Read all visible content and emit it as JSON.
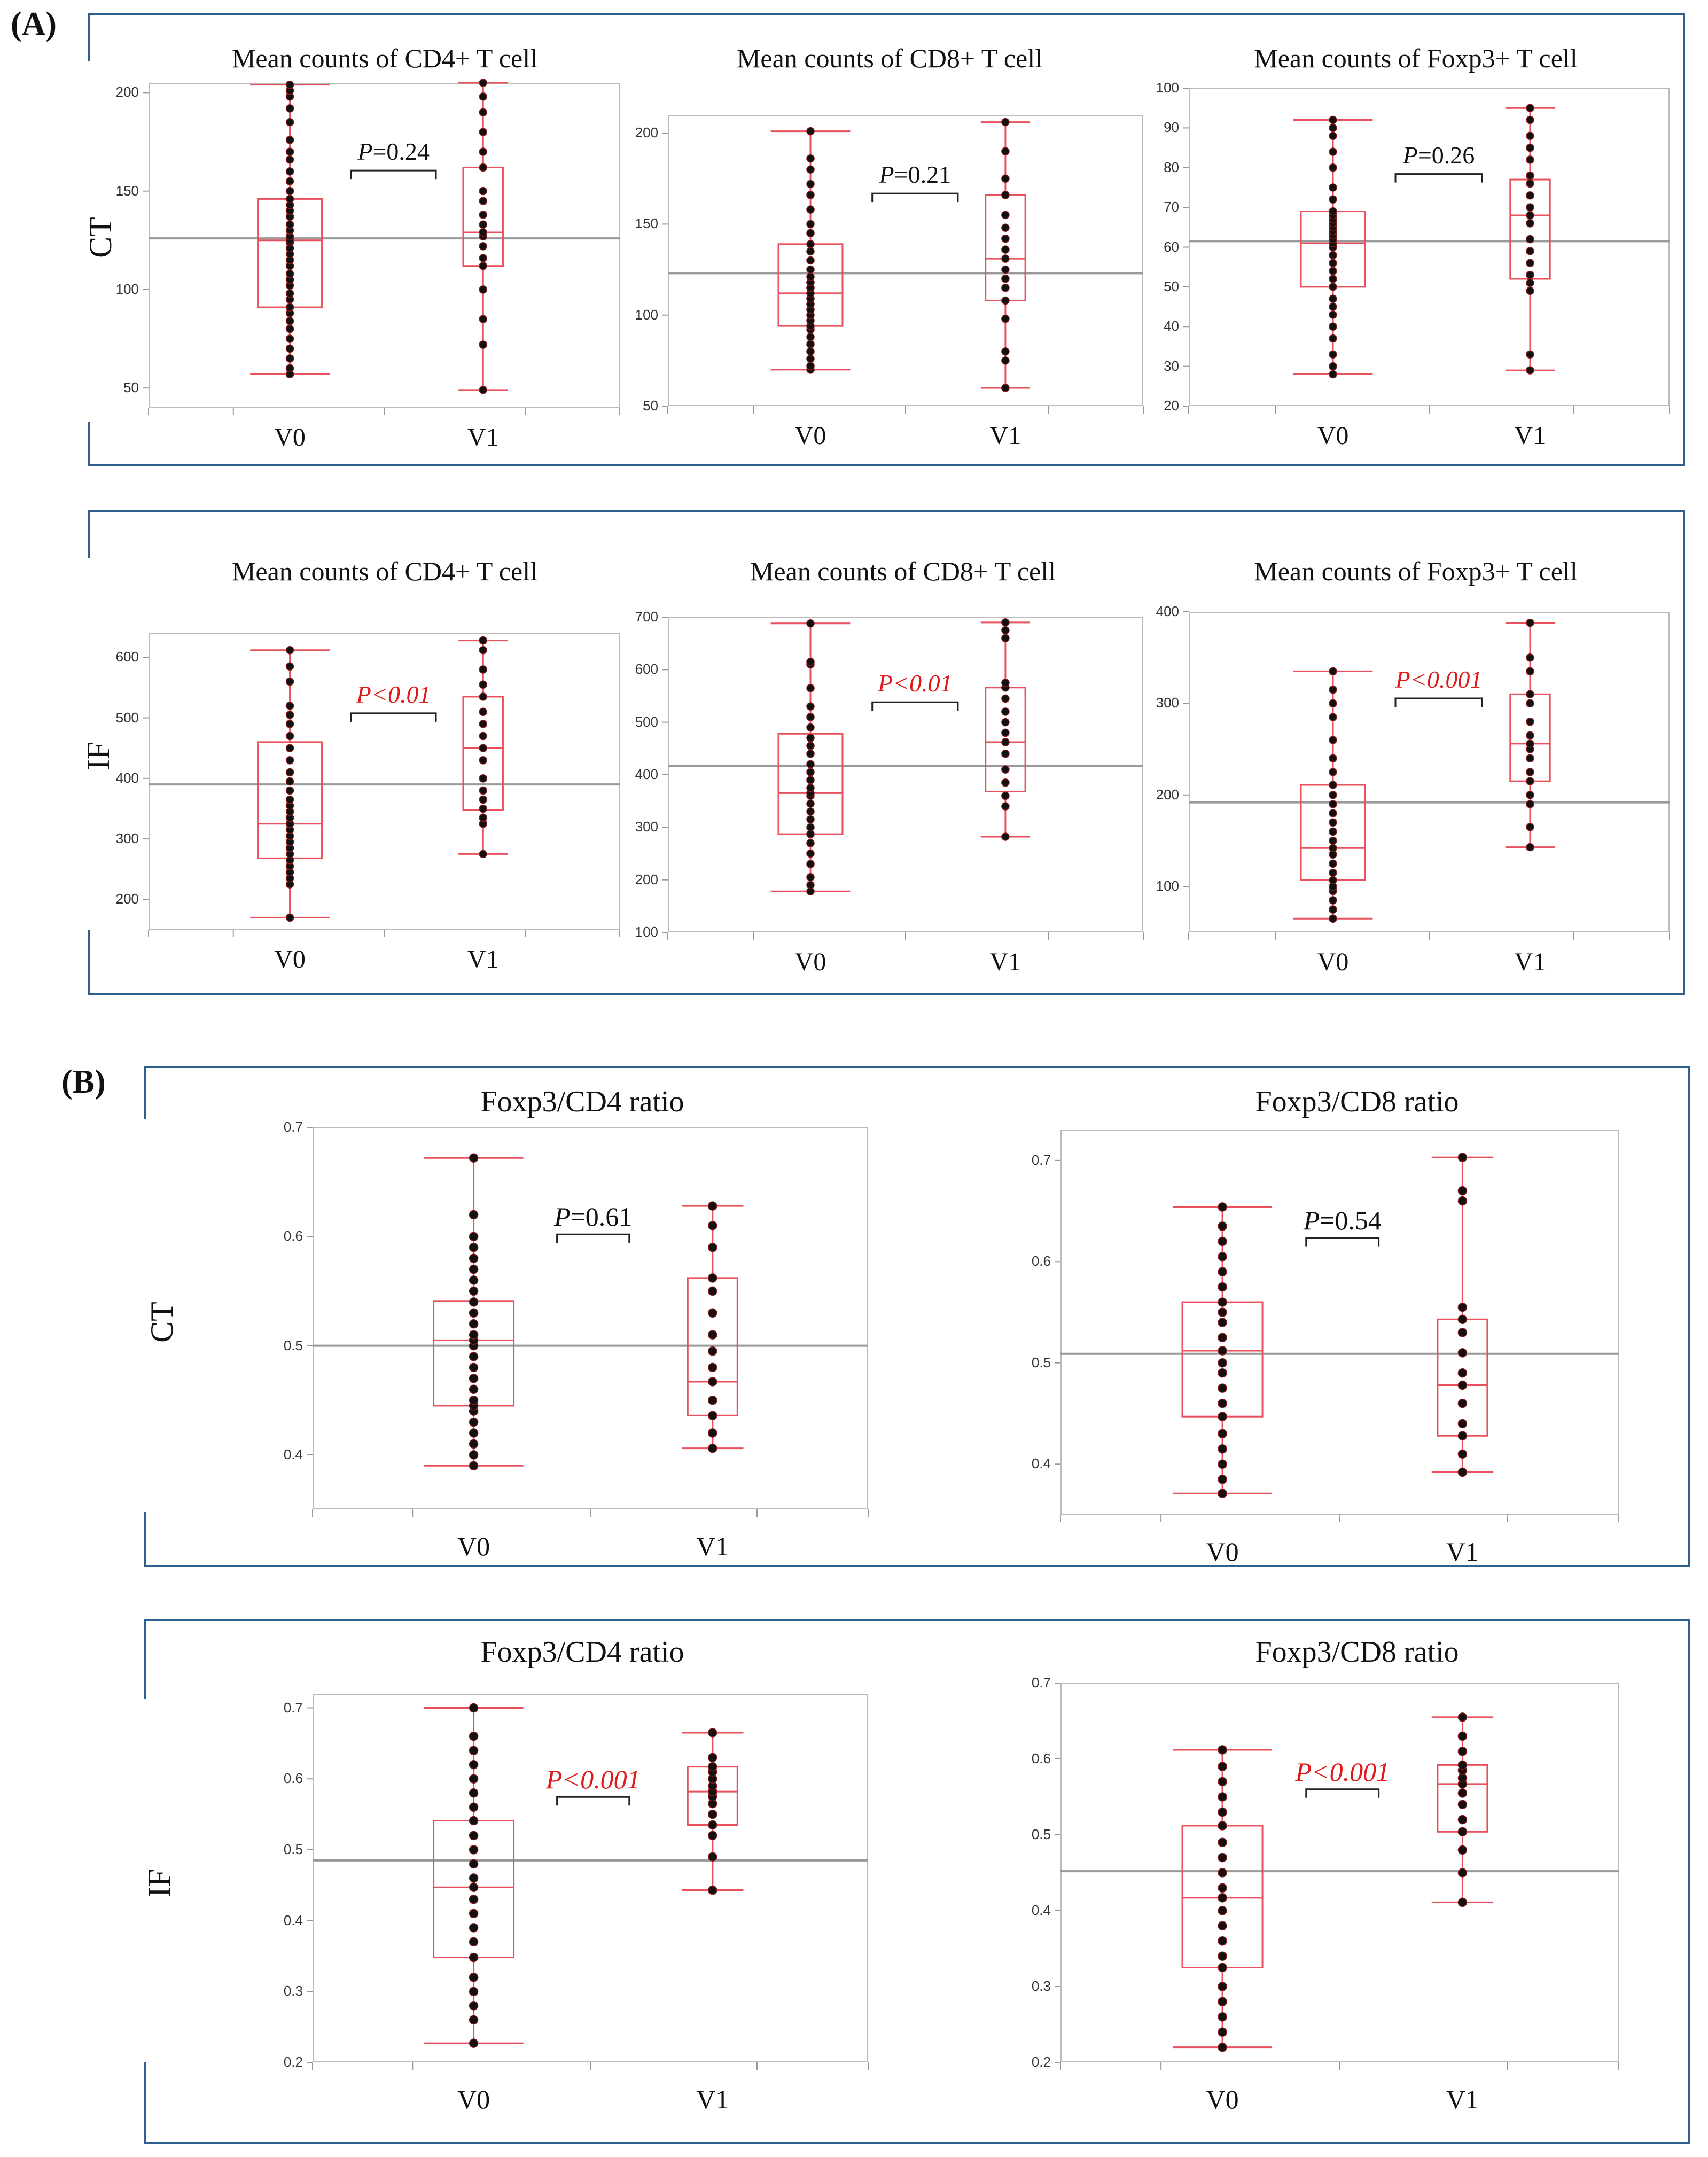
{
  "panel_labels": {
    "A": "(A)",
    "B": "(B)"
  },
  "row_labels": {
    "ct": "CT",
    "if": "IF"
  },
  "colors": {
    "frame": "#2f5f8f",
    "box": "#e8505b",
    "point": "#111111",
    "mean_line": "#999999",
    "significant": "#e0191b"
  },
  "chart_data": [
    {
      "id": "a_ct_cd4",
      "type": "box",
      "row": "CT",
      "title": "Mean counts of CD4+ T cell",
      "categories": [
        "V0",
        "V1"
      ],
      "ylim": [
        40,
        205
      ],
      "yticks": [
        50,
        100,
        150,
        200
      ],
      "overall_mean": 126,
      "p_label": "=0.24",
      "p_prefix": "P",
      "significant": false,
      "boxes": [
        {
          "name": "V0",
          "min": 57,
          "q1": 91,
          "median": 125,
          "q3": 146,
          "max": 204,
          "points": [
            57,
            60,
            65,
            70,
            75,
            80,
            84,
            88,
            91,
            95,
            98,
            102,
            105,
            108,
            112,
            115,
            118,
            121,
            124,
            125,
            127,
            130,
            133,
            137,
            140,
            143,
            146,
            150,
            155,
            160,
            166,
            170,
            176,
            185,
            192,
            198,
            201,
            204
          ]
        },
        {
          "name": "V1",
          "min": 49,
          "q1": 112,
          "median": 129,
          "q3": 162,
          "max": 205,
          "points": [
            49,
            72,
            85,
            100,
            112,
            116,
            122,
            127,
            129,
            133,
            138,
            145,
            150,
            162,
            170,
            180,
            190,
            198,
            205
          ]
        }
      ]
    },
    {
      "id": "a_ct_cd8",
      "type": "box",
      "row": "CT",
      "title": "Mean counts of CD8+ T cell",
      "categories": [
        "V0",
        "V1"
      ],
      "ylim": [
        50,
        210
      ],
      "yticks": [
        50,
        100,
        150,
        200
      ],
      "overall_mean": 123,
      "p_label": "=0.21",
      "p_prefix": "P",
      "significant": false,
      "boxes": [
        {
          "name": "V0",
          "min": 70,
          "q1": 94,
          "median": 112,
          "q3": 139,
          "max": 201,
          "points": [
            70,
            72,
            76,
            80,
            84,
            88,
            92,
            94,
            97,
            100,
            103,
            106,
            109,
            112,
            115,
            118,
            121,
            125,
            130,
            135,
            139,
            145,
            150,
            158,
            166,
            172,
            180,
            186,
            201
          ]
        },
        {
          "name": "V1",
          "min": 60,
          "q1": 108,
          "median": 131,
          "q3": 166,
          "max": 206,
          "points": [
            60,
            75,
            80,
            98,
            108,
            115,
            120,
            125,
            131,
            136,
            142,
            148,
            155,
            166,
            175,
            190,
            206
          ]
        }
      ]
    },
    {
      "id": "a_ct_foxp3",
      "type": "box",
      "row": "CT",
      "title": "Mean counts of Foxp3+ T cell",
      "categories": [
        "V0",
        "V1"
      ],
      "ylim": [
        20,
        100
      ],
      "yticks": [
        20,
        30,
        40,
        50,
        60,
        70,
        80,
        90,
        100
      ],
      "overall_mean": 61.5,
      "p_label": "=0.26",
      "p_prefix": "P",
      "significant": false,
      "boxes": [
        {
          "name": "V0",
          "min": 28,
          "q1": 50,
          "median": 61,
          "q3": 69,
          "max": 92,
          "points": [
            28,
            30,
            33,
            37,
            40,
            43,
            45,
            47,
            50,
            52,
            54,
            56,
            58,
            60,
            61,
            62,
            63,
            64,
            65,
            66,
            67,
            68,
            69,
            72,
            75,
            80,
            84,
            88,
            90,
            92
          ]
        },
        {
          "name": "V1",
          "min": 29,
          "q1": 52,
          "median": 68,
          "q3": 77,
          "max": 95,
          "points": [
            29,
            33,
            49,
            51,
            53,
            56,
            59,
            62,
            66,
            68,
            70,
            73,
            76,
            78,
            82,
            85,
            88,
            92,
            95
          ]
        }
      ]
    },
    {
      "id": "a_if_cd4",
      "type": "box",
      "row": "IF",
      "title": "Mean counts of CD4+ T cell",
      "categories": [
        "V0",
        "V1"
      ],
      "ylim": [
        150,
        640
      ],
      "yticks": [
        200,
        300,
        400,
        500,
        600
      ],
      "overall_mean": 390,
      "p_label": "<0.01",
      "p_prefix": "P",
      "significant": true,
      "boxes": [
        {
          "name": "V0",
          "min": 170,
          "q1": 268,
          "median": 325,
          "q3": 460,
          "max": 612,
          "points": [
            170,
            225,
            235,
            245,
            255,
            265,
            275,
            285,
            295,
            305,
            315,
            325,
            335,
            345,
            355,
            365,
            380,
            395,
            410,
            430,
            450,
            470,
            490,
            505,
            520,
            560,
            585,
            612
          ]
        },
        {
          "name": "V1",
          "min": 275,
          "q1": 348,
          "median": 450,
          "q3": 535,
          "max": 628,
          "points": [
            275,
            325,
            335,
            350,
            365,
            380,
            400,
            430,
            450,
            470,
            490,
            510,
            535,
            555,
            580,
            612,
            628
          ]
        }
      ]
    },
    {
      "id": "a_if_cd8",
      "type": "box",
      "row": "IF",
      "title": "Mean counts of CD8+ T cell",
      "categories": [
        "V0",
        "V1"
      ],
      "ylim": [
        100,
        700
      ],
      "yticks": [
        100,
        200,
        300,
        400,
        500,
        600,
        700
      ],
      "overall_mean": 417,
      "p_label": "<0.01",
      "p_prefix": "P",
      "significant": true,
      "boxes": [
        {
          "name": "V0",
          "min": 178,
          "q1": 287,
          "median": 365,
          "q3": 478,
          "max": 688,
          "points": [
            178,
            190,
            205,
            230,
            250,
            270,
            287,
            300,
            315,
            330,
            345,
            360,
            365,
            375,
            390,
            405,
            420,
            440,
            455,
            470,
            490,
            510,
            530,
            565,
            610,
            615,
            688
          ]
        },
        {
          "name": "V1",
          "min": 282,
          "q1": 368,
          "median": 462,
          "q3": 566,
          "max": 690,
          "points": [
            282,
            340,
            360,
            385,
            410,
            440,
            462,
            480,
            500,
            520,
            545,
            566,
            575,
            660,
            675,
            690
          ]
        }
      ]
    },
    {
      "id": "a_if_foxp3",
      "type": "box",
      "row": "IF",
      "title": "Mean counts of Foxp3+ T cell",
      "categories": [
        "V0",
        "V1"
      ],
      "ylim": [
        50,
        400
      ],
      "yticks": [
        100,
        200,
        300,
        400
      ],
      "overall_mean": 192,
      "p_label": "<0.001",
      "p_prefix": "P",
      "significant": true,
      "boxes": [
        {
          "name": "V0",
          "min": 65,
          "q1": 107,
          "median": 142,
          "q3": 211,
          "max": 335,
          "points": [
            65,
            75,
            85,
            95,
            100,
            107,
            115,
            125,
            135,
            142,
            150,
            160,
            170,
            180,
            190,
            200,
            211,
            225,
            240,
            260,
            285,
            300,
            315,
            335
          ]
        },
        {
          "name": "V1",
          "min": 143,
          "q1": 215,
          "median": 256,
          "q3": 310,
          "max": 388,
          "points": [
            143,
            165,
            190,
            200,
            215,
            225,
            240,
            250,
            256,
            265,
            280,
            300,
            310,
            335,
            350,
            388
          ]
        }
      ]
    },
    {
      "id": "b_ct_cd4",
      "type": "box",
      "row": "CT",
      "title": "Foxp3/CD4 ratio",
      "categories": [
        "V0",
        "V1"
      ],
      "ylim": [
        0.35,
        0.7
      ],
      "yticks": [
        0.4,
        0.5,
        0.6,
        0.7
      ],
      "overall_mean": 0.5,
      "p_label": "=0.61",
      "p_prefix": "P",
      "significant": false,
      "boxes": [
        {
          "name": "V0",
          "min": 0.39,
          "q1": 0.445,
          "median": 0.505,
          "q3": 0.541,
          "max": 0.672,
          "points": [
            0.39,
            0.4,
            0.41,
            0.42,
            0.43,
            0.44,
            0.445,
            0.45,
            0.46,
            0.47,
            0.48,
            0.49,
            0.5,
            0.505,
            0.51,
            0.52,
            0.53,
            0.54,
            0.55,
            0.56,
            0.57,
            0.58,
            0.59,
            0.6,
            0.62,
            0.672
          ]
        },
        {
          "name": "V1",
          "min": 0.406,
          "q1": 0.436,
          "median": 0.467,
          "q3": 0.562,
          "max": 0.628,
          "points": [
            0.406,
            0.42,
            0.436,
            0.45,
            0.467,
            0.48,
            0.495,
            0.51,
            0.53,
            0.55,
            0.562,
            0.59,
            0.61,
            0.628
          ]
        }
      ]
    },
    {
      "id": "b_ct_cd8",
      "type": "box",
      "row": "CT",
      "title": "Foxp3/CD8 ratio",
      "categories": [
        "V0",
        "V1"
      ],
      "ylim": [
        0.35,
        0.73
      ],
      "yticks": [
        0.4,
        0.5,
        0.6,
        0.7
      ],
      "overall_mean": 0.509,
      "p_label": "=0.54",
      "p_prefix": "P",
      "significant": false,
      "boxes": [
        {
          "name": "V0",
          "min": 0.371,
          "q1": 0.447,
          "median": 0.512,
          "q3": 0.56,
          "max": 0.654,
          "points": [
            0.371,
            0.385,
            0.4,
            0.415,
            0.43,
            0.447,
            0.46,
            0.475,
            0.49,
            0.5,
            0.512,
            0.525,
            0.54,
            0.55,
            0.56,
            0.575,
            0.59,
            0.605,
            0.62,
            0.635,
            0.654
          ]
        },
        {
          "name": "V1",
          "min": 0.392,
          "q1": 0.428,
          "median": 0.478,
          "q3": 0.543,
          "max": 0.703,
          "points": [
            0.392,
            0.41,
            0.428,
            0.44,
            0.46,
            0.478,
            0.49,
            0.51,
            0.53,
            0.543,
            0.555,
            0.66,
            0.67,
            0.703
          ]
        }
      ]
    },
    {
      "id": "b_if_cd4",
      "type": "box",
      "row": "IF",
      "title": "Foxp3/CD4 ratio",
      "categories": [
        "V0",
        "V1"
      ],
      "ylim": [
        0.2,
        0.72
      ],
      "yticks": [
        0.2,
        0.3,
        0.4,
        0.5,
        0.6,
        0.7
      ],
      "overall_mean": 0.485,
      "p_label": "<0.001",
      "p_prefix": "P",
      "significant": true,
      "boxes": [
        {
          "name": "V0",
          "min": 0.227,
          "q1": 0.348,
          "median": 0.447,
          "q3": 0.541,
          "max": 0.7,
          "points": [
            0.227,
            0.26,
            0.28,
            0.3,
            0.32,
            0.348,
            0.37,
            0.39,
            0.41,
            0.43,
            0.447,
            0.46,
            0.48,
            0.5,
            0.52,
            0.541,
            0.56,
            0.58,
            0.6,
            0.62,
            0.64,
            0.66,
            0.7
          ]
        },
        {
          "name": "V1",
          "min": 0.443,
          "q1": 0.535,
          "median": 0.582,
          "q3": 0.617,
          "max": 0.665,
          "points": [
            0.443,
            0.49,
            0.52,
            0.535,
            0.55,
            0.565,
            0.575,
            0.582,
            0.59,
            0.6,
            0.61,
            0.617,
            0.63,
            0.665
          ]
        }
      ]
    },
    {
      "id": "b_if_cd8",
      "type": "box",
      "row": "IF",
      "title": "Foxp3/CD8 ratio",
      "categories": [
        "V0",
        "V1"
      ],
      "ylim": [
        0.2,
        0.7
      ],
      "yticks": [
        0.2,
        0.3,
        0.4,
        0.5,
        0.6,
        0.7
      ],
      "overall_mean": 0.452,
      "p_label": "<0.001",
      "p_prefix": "P",
      "significant": true,
      "boxes": [
        {
          "name": "V0",
          "min": 0.22,
          "q1": 0.325,
          "median": 0.417,
          "q3": 0.512,
          "max": 0.612,
          "points": [
            0.22,
            0.24,
            0.26,
            0.28,
            0.3,
            0.325,
            0.34,
            0.36,
            0.38,
            0.4,
            0.417,
            0.43,
            0.45,
            0.47,
            0.49,
            0.512,
            0.53,
            0.55,
            0.57,
            0.59,
            0.612
          ]
        },
        {
          "name": "V1",
          "min": 0.411,
          "q1": 0.504,
          "median": 0.567,
          "q3": 0.592,
          "max": 0.655,
          "points": [
            0.411,
            0.45,
            0.48,
            0.504,
            0.52,
            0.54,
            0.555,
            0.567,
            0.575,
            0.585,
            0.592,
            0.61,
            0.63,
            0.655
          ]
        }
      ]
    }
  ]
}
